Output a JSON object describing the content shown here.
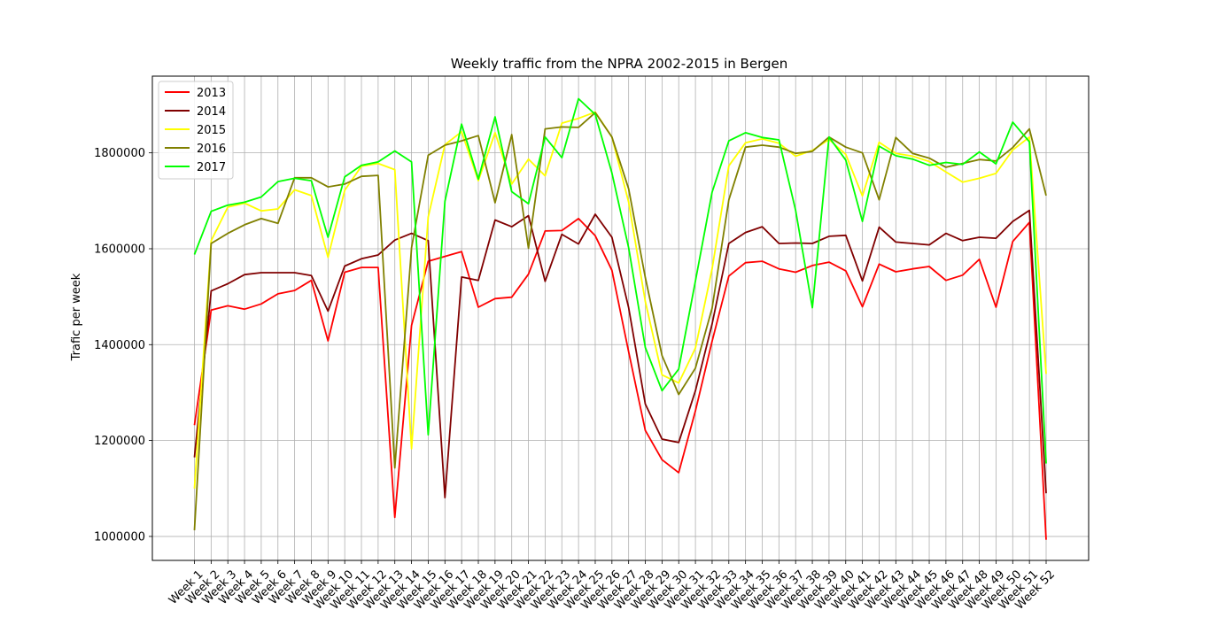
{
  "chart_data": {
    "type": "line",
    "title": "Weekly traffic from the NPRA 2002-2015 in Bergen",
    "xlabel": "",
    "ylabel": "Trafic per week",
    "ylim": [
      950000,
      1960000
    ],
    "yticks": [
      1000000,
      1200000,
      1400000,
      1600000,
      1800000
    ],
    "grid": true,
    "legend_position": "top-left",
    "categories": [
      "Week 1",
      "Week 2",
      "Week 3",
      "Week 4",
      "Week 5",
      "Week 6",
      "Week 7",
      "Week 8",
      "Week 9",
      "Week 10",
      "Week 11",
      "Week 12",
      "Week 13",
      "Week 14",
      "Week 15",
      "Week 16",
      "Week 17",
      "Week 18",
      "Week 19",
      "Week 20",
      "Week 21",
      "Week 22",
      "Week 23",
      "Week 24",
      "Week 25",
      "Week 26",
      "Week 27",
      "Week 28",
      "Week 29",
      "Week 30",
      "Week 31",
      "Week 32",
      "Week 33",
      "Week 34",
      "Week 35",
      "Week 36",
      "Week 37",
      "Week 38",
      "Week 39",
      "Week 40",
      "Week 41",
      "Week 42",
      "Week 43",
      "Week 44",
      "Week 45",
      "Week 46",
      "Week 47",
      "Week 48",
      "Week 49",
      "Week 50",
      "Week 51",
      "Week 52"
    ],
    "series": [
      {
        "name": "2013",
        "color": "#ff0000",
        "values": [
          1232000,
          1472000,
          1481000,
          1474000,
          1485000,
          1506000,
          1513000,
          1534000,
          1408000,
          1551000,
          1561000,
          1561000,
          1040000,
          1440000,
          1574000,
          1584000,
          1594000,
          1478000,
          1496000,
          1499000,
          1547000,
          1637000,
          1638000,
          1663000,
          1627000,
          1555000,
          1385000,
          1221000,
          1160000,
          1133000,
          1262000,
          1407000,
          1543000,
          1571000,
          1574000,
          1558000,
          1551000,
          1565000,
          1572000,
          1554000,
          1479000,
          1568000,
          1552000,
          1558000,
          1563000,
          1534000,
          1545000,
          1578000,
          1478000,
          1615000,
          1655000,
          993000
        ]
      },
      {
        "name": "2014",
        "color": "#800000",
        "values": [
          1165000,
          1512000,
          1527000,
          1546000,
          1550000,
          1550000,
          1550000,
          1544000,
          1470000,
          1564000,
          1579000,
          1587000,
          1618000,
          1632000,
          1617000,
          1081000,
          1541000,
          1534000,
          1660000,
          1646000,
          1669000,
          1532000,
          1630000,
          1610000,
          1672000,
          1624000,
          1477000,
          1276000,
          1203000,
          1196000,
          1304000,
          1443000,
          1611000,
          1634000,
          1646000,
          1611000,
          1612000,
          1611000,
          1626000,
          1628000,
          1533000,
          1645000,
          1614000,
          1611000,
          1608000,
          1632000,
          1617000,
          1624000,
          1622000,
          1657000,
          1680000,
          1090000
        ]
      },
      {
        "name": "2015",
        "color": "#ffff00",
        "values": [
          1100000,
          1617000,
          1687000,
          1695000,
          1679000,
          1683000,
          1723000,
          1711000,
          1582000,
          1722000,
          1772000,
          1778000,
          1765000,
          1183000,
          1666000,
          1817000,
          1844000,
          1742000,
          1842000,
          1735000,
          1787000,
          1752000,
          1862000,
          1872000,
          1885000,
          1833000,
          1697000,
          1490000,
          1337000,
          1320000,
          1393000,
          1558000,
          1773000,
          1821000,
          1829000,
          1820000,
          1793000,
          1805000,
          1828000,
          1797000,
          1710000,
          1822000,
          1799000,
          1793000,
          1782000,
          1760000,
          1739000,
          1747000,
          1757000,
          1806000,
          1833000,
          1339000
        ]
      },
      {
        "name": "2016",
        "color": "#808000",
        "values": [
          1013000,
          1611000,
          1632000,
          1650000,
          1663000,
          1653000,
          1748000,
          1748000,
          1729000,
          1735000,
          1751000,
          1753000,
          1143000,
          1602000,
          1795000,
          1816000,
          1825000,
          1836000,
          1696000,
          1838000,
          1601000,
          1850000,
          1854000,
          1853000,
          1884000,
          1833000,
          1725000,
          1540000,
          1377000,
          1296000,
          1351000,
          1476000,
          1702000,
          1812000,
          1816000,
          1812000,
          1799000,
          1803000,
          1833000,
          1812000,
          1800000,
          1702000,
          1832000,
          1799000,
          1789000,
          1770000,
          1778000,
          1786000,
          1783000,
          1811000,
          1850000,
          1711000
        ]
      },
      {
        "name": "2017",
        "color": "#00ff00",
        "values": [
          1588000,
          1678000,
          1691000,
          1697000,
          1708000,
          1740000,
          1747000,
          1742000,
          1624000,
          1750000,
          1774000,
          1781000,
          1804000,
          1781000,
          1212000,
          1699000,
          1860000,
          1745000,
          1875000,
          1719000,
          1694000,
          1833000,
          1790000,
          1913000,
          1880000,
          1758000,
          1602000,
          1394000,
          1304000,
          1349000,
          1533000,
          1718000,
          1825000,
          1842000,
          1832000,
          1827000,
          1680000,
          1477000,
          1833000,
          1785000,
          1657000,
          1814000,
          1794000,
          1787000,
          1774000,
          1780000,
          1776000,
          1802000,
          1777000,
          1864000,
          1823000,
          1152000
        ]
      }
    ]
  }
}
